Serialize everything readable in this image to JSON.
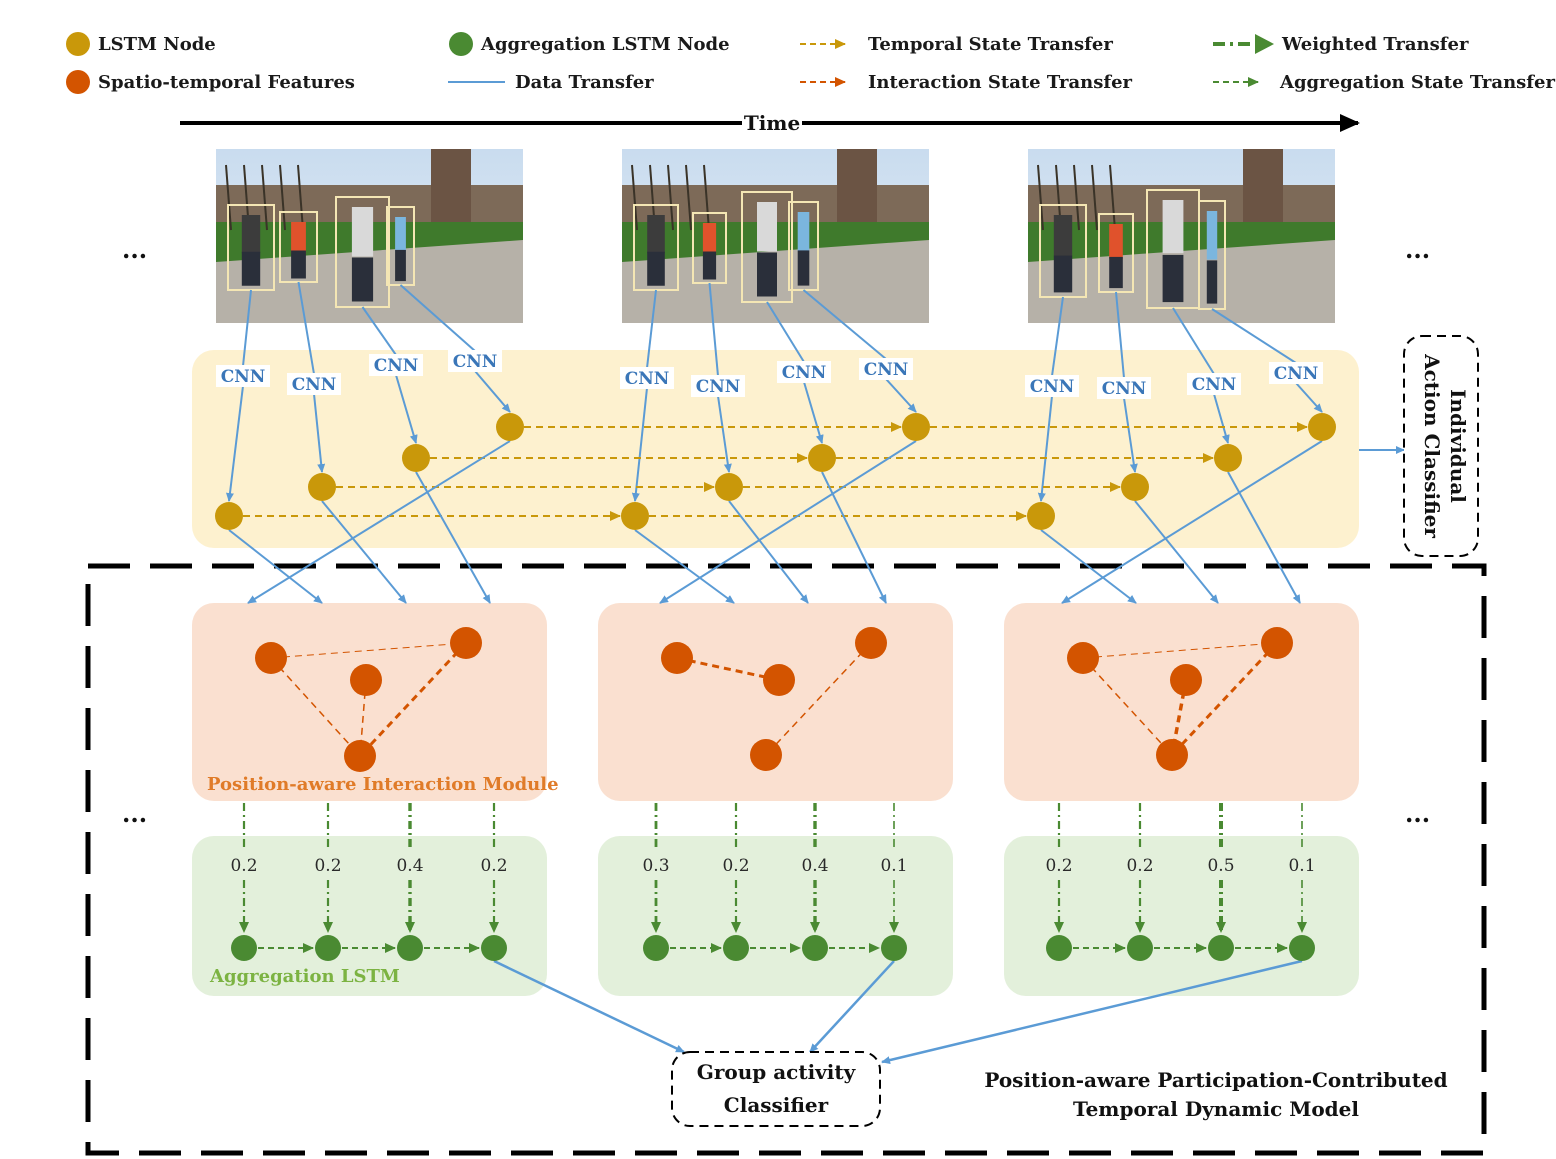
{
  "legend": {
    "lstm_node": "LSTM Node",
    "aggregation_node": "Aggregation LSTM Node",
    "temporal_transfer": "Temporal State Transfer",
    "weighted_transfer": "Weighted Transfer",
    "spatio_features": "Spatio-temporal Features",
    "data_transfer": "Data  Transfer",
    "interaction_transfer": "Interaction State Transfer",
    "aggregation_transfer": "Aggregation State Transfer"
  },
  "time_label": "Time",
  "ellipsis": "...",
  "cnn_label": "CNN",
  "individual_classifier": [
    "Individual",
    "Action Classifier"
  ],
  "interaction_module_label": "Position-aware Interaction Module",
  "aggregation_lstm_label": "Aggregation LSTM",
  "group_classifier": [
    "Group activity",
    "Classifier"
  ],
  "model_title": [
    "Position-aware Participation-Contributed",
    "Temporal Dynamic Model"
  ],
  "weights": [
    [
      "0.2",
      "0.2",
      "0.4",
      "0.2"
    ],
    [
      "0.3",
      "0.2",
      "0.4",
      "0.1"
    ],
    [
      "0.2",
      "0.2",
      "0.5",
      "0.1"
    ]
  ],
  "colors": {
    "lstm": "#c9980a",
    "feature": "#d35400",
    "aggregation": "#4a8a32",
    "data": "#5b9bd5",
    "yellow_panel": "#fdf1cf",
    "orange_panel": "#fae0d0",
    "green_panel": "#e3f0db"
  }
}
